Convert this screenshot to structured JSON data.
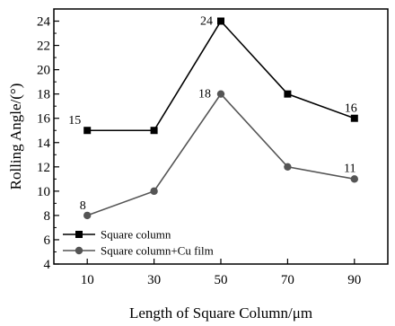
{
  "chart_data": {
    "type": "line",
    "title": "",
    "xlabel": "Length of Square Column/μm",
    "ylabel": "Rolling Angle/(°)",
    "x": [
      10,
      30,
      50,
      70,
      90
    ],
    "xlim": [
      0,
      100
    ],
    "ylim": [
      4,
      25
    ],
    "yticks": [
      4,
      6,
      8,
      10,
      12,
      14,
      16,
      18,
      20,
      22,
      24
    ],
    "grid": false,
    "legend_position": "bottom-left",
    "series": [
      {
        "name": "Square column",
        "values": [
          15,
          15,
          24,
          18,
          16
        ],
        "color": "#000000",
        "marker": "square",
        "labels": {
          "0": "15",
          "2": "24",
          "4": "16"
        }
      },
      {
        "name": "Square column+Cu film",
        "values": [
          8,
          10,
          18,
          12,
          11
        ],
        "color": "#555555",
        "marker": "circle",
        "labels": {
          "0": "8",
          "2": "18",
          "4": "11"
        }
      }
    ]
  }
}
